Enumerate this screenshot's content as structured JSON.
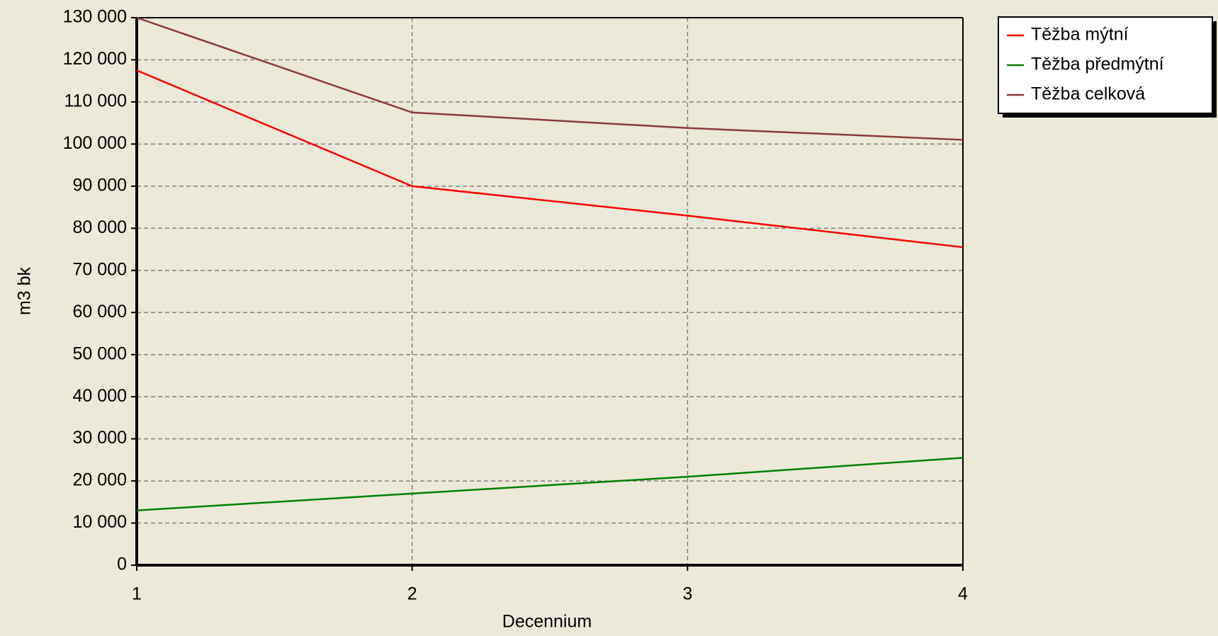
{
  "chart_data": {
    "type": "line",
    "x_label": "Decennium",
    "y_label": "m3 bk",
    "x": [
      1,
      2,
      3,
      4
    ],
    "xlim": [
      1,
      4
    ],
    "xticks": [
      1,
      2,
      3,
      4
    ],
    "ylim": [
      0,
      130000
    ],
    "yticks": [
      0,
      {
        "value": 10000,
        "label": "10 000"
      },
      {
        "value": 20000,
        "label": "20 000"
      },
      {
        "value": 30000,
        "label": "30 000"
      },
      {
        "value": 40000,
        "label": "40 000"
      },
      {
        "value": 50000,
        "label": "50 000"
      },
      {
        "value": 60000,
        "label": "60 000"
      },
      {
        "value": 70000,
        "label": "70 000"
      },
      {
        "value": 80000,
        "label": "80 000"
      },
      {
        "value": 90000,
        "label": "90 000"
      },
      {
        "value": 100000,
        "label": "100 000"
      },
      {
        "value": 110000,
        "label": "110 000"
      },
      {
        "value": 120000,
        "label": "120 000"
      },
      {
        "value": 130000,
        "label": "130 000"
      }
    ],
    "grid": true,
    "legend": "upper right outside",
    "series": [
      {
        "name": "Těžba mýtní",
        "color": "#ff0000",
        "values": [
          117500,
          90000,
          83000,
          75500
        ]
      },
      {
        "name": "Těžba předmýtní",
        "color": "#008000",
        "values": [
          13000,
          17000,
          21000,
          25500
        ]
      },
      {
        "name": "Těžba celková",
        "color": "#8b3a3a",
        "values": [
          130000,
          107500,
          103800,
          101000
        ]
      }
    ]
  }
}
